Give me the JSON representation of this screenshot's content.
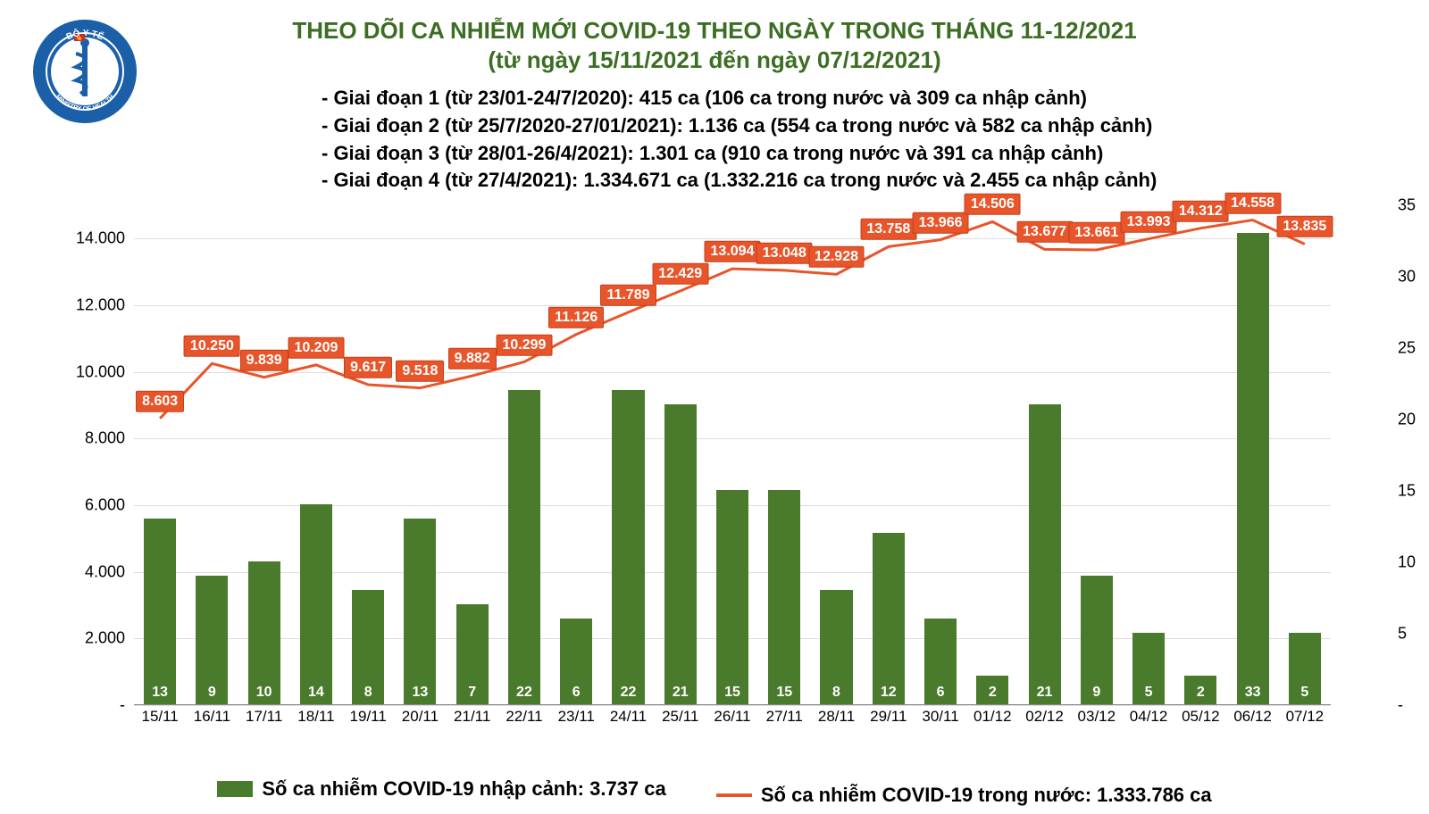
{
  "logo": {
    "outer_text_top": "BỘ Y TẾ",
    "outer_text_bottom": "MINISTRY OF HEALTH",
    "ring_color": "#1a5fa8",
    "star_color": "#f5c518",
    "flag_red": "#d22a1e"
  },
  "title": {
    "line1": "THEO DÕI CA NHIỄM MỚI COVID-19 THEO NGÀY TRONG THÁNG 11-12/2021",
    "line2": "(từ ngày 15/11/2021 đến ngày 07/12/2021)",
    "color": "#3b6e22",
    "fontsize": 26
  },
  "phases": [
    "- Giai đoạn 1 (từ 23/01-24/7/2020): 415 ca (106 ca trong nước và 309 ca nhập cảnh)",
    "- Giai đoạn 2 (từ 25/7/2020-27/01/2021): 1.136 ca (554 ca trong nước và 582 ca nhập cảnh)",
    "- Giai đoạn 3 (từ 28/01-26/4/2021): 1.301 ca (910 ca trong nước và 391 ca nhập cảnh)",
    "- Giai đoạn 4 (từ 27/4/2021): 1.334.671 ca (1.332.216 ca trong nước và 2.455 ca nhập cảnh)"
  ],
  "phases_style": {
    "fontsize": 22,
    "color": "#000000",
    "fontweight": "bold"
  },
  "chart": {
    "type": "bar+line",
    "categories": [
      "15/11",
      "16/11",
      "17/11",
      "18/11",
      "19/11",
      "20/11",
      "21/11",
      "22/11",
      "23/11",
      "24/11",
      "25/11",
      "26/11",
      "27/11",
      "28/11",
      "29/11",
      "30/11",
      "01/12",
      "02/12",
      "03/12",
      "04/12",
      "05/12",
      "06/12",
      "07/12"
    ],
    "bars": {
      "values": [
        13,
        9,
        10,
        14,
        8,
        13,
        7,
        22,
        6,
        22,
        21,
        15,
        15,
        8,
        12,
        6,
        2,
        21,
        9,
        5,
        2,
        33,
        5
      ],
      "color": "#4a7a2c",
      "label_color": "#ffffff",
      "label_fontsize": 16,
      "bar_width_frac": 0.62,
      "axis": "right",
      "y_min": 0,
      "y_max": 35,
      "y_ticks": [
        0,
        5,
        10,
        15,
        20,
        25,
        30,
        35
      ]
    },
    "line": {
      "values": [
        8603,
        10250,
        9839,
        10209,
        9617,
        9518,
        9882,
        10299,
        11126,
        11789,
        12429,
        13094,
        13048,
        12928,
        13758,
        13966,
        14506,
        13677,
        13661,
        13993,
        14312,
        14558,
        13835
      ],
      "labels": [
        "8.603",
        "10.250",
        "9.839",
        "10.209",
        "9.617",
        "9.518",
        "9.882",
        "10.299",
        "11.126",
        "11.789",
        "12.429",
        "13.094",
        "13.048",
        "12.928",
        "13.758",
        "13.966",
        "14.506",
        "13.677",
        "13.661",
        "13.993",
        "14.312",
        "14.558",
        "13.835"
      ],
      "color": "#e8552b",
      "line_width": 3,
      "label_bg": "#e8552b",
      "label_color": "#ffffff",
      "label_fontsize": 16,
      "axis": "left",
      "y_min": 0,
      "y_max": 15000,
      "y_ticks": [
        0,
        2000,
        4000,
        6000,
        8000,
        10000,
        12000,
        14000
      ],
      "y_tick_labels": [
        "-",
        "2.000",
        "4.000",
        "6.000",
        "8.000",
        "10.000",
        "12.000",
        "14.000"
      ]
    },
    "grid_color": "#dddddd",
    "background_color": "#ffffff",
    "axis_fontsize": 18
  },
  "legend": {
    "bar_text": "Số ca nhiễm COVID-19 nhập cảnh: 3.737 ca",
    "line_text": "Số ca nhiễm COVID-19 trong nước: 1.333.786 ca",
    "bar_color": "#4a7a2c",
    "line_color": "#e8552b",
    "fontsize": 22
  }
}
